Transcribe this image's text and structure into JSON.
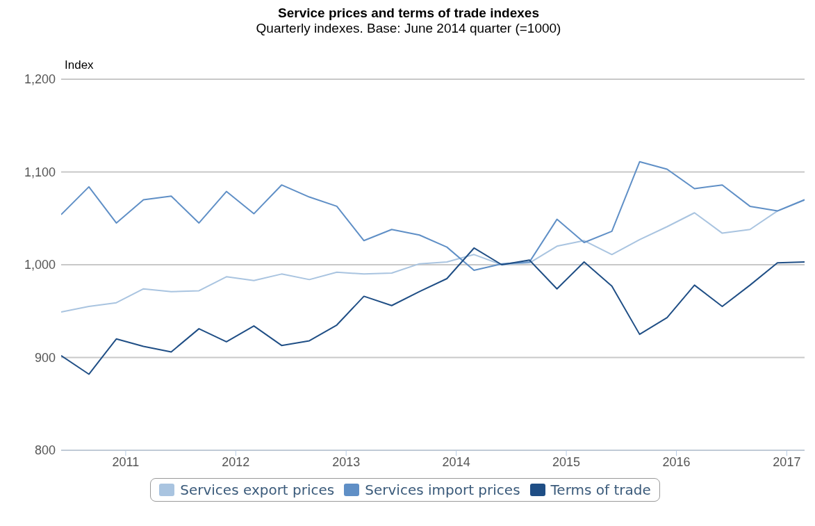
{
  "chart_data": {
    "type": "line",
    "title": "Service prices and terms of trade indexes",
    "subtitle": "Quarterly indexes. Base: June 2014 quarter (=1000)",
    "ylabel": "Index",
    "x": [
      "2010-06",
      "2010-09",
      "2010-12",
      "2011-03",
      "2011-06",
      "2011-09",
      "2011-12",
      "2012-03",
      "2012-06",
      "2012-09",
      "2012-12",
      "2013-03",
      "2013-06",
      "2013-09",
      "2013-12",
      "2014-03",
      "2014-06",
      "2014-09",
      "2014-12",
      "2015-03",
      "2015-06",
      "2015-09",
      "2015-12",
      "2016-03",
      "2016-06",
      "2016-09",
      "2016-12",
      "2017-03"
    ],
    "series": [
      {
        "name": "Services export prices",
        "color": "#a9c4e0",
        "values": [
          949,
          955,
          959,
          974,
          971,
          972,
          987,
          983,
          990,
          984,
          992,
          990,
          991,
          1001,
          1003,
          1011,
          1000,
          1002,
          1020,
          1026,
          1011,
          1027,
          1041,
          1056,
          1034,
          1038,
          1058,
          1070
        ]
      },
      {
        "name": "Services import prices",
        "color": "#5f8fc6",
        "values": [
          1054,
          1084,
          1045,
          1070,
          1074,
          1045,
          1079,
          1055,
          1086,
          1073,
          1063,
          1026,
          1038,
          1032,
          1019,
          994,
          1001,
          1003,
          1049,
          1024,
          1036,
          1111,
          1103,
          1082,
          1086,
          1063,
          1058,
          1070
        ]
      },
      {
        "name": "Terms of trade",
        "color": "#1f4e85",
        "values": [
          902,
          882,
          920,
          912,
          906,
          931,
          917,
          934,
          913,
          918,
          935,
          966,
          956,
          971,
          985,
          1018,
          1000,
          1005,
          974,
          1003,
          977,
          925,
          943,
          978,
          955,
          978,
          1002,
          1003
        ]
      }
    ],
    "xlim": [
      "2010-06",
      "2017-03"
    ],
    "xticks": [
      "2011",
      "2012",
      "2013",
      "2014",
      "2015",
      "2016",
      "2017"
    ],
    "ylim": [
      800,
      1200
    ],
    "yticks": [
      800,
      900,
      {
        "value": 1000,
        "label": "1,000"
      },
      {
        "value": 1100,
        "label": "1,100"
      },
      {
        "value": 1200,
        "label": "1,200"
      }
    ],
    "grid": "y",
    "legend": "bottom",
    "marker": "none",
    "line_style": "solid"
  }
}
